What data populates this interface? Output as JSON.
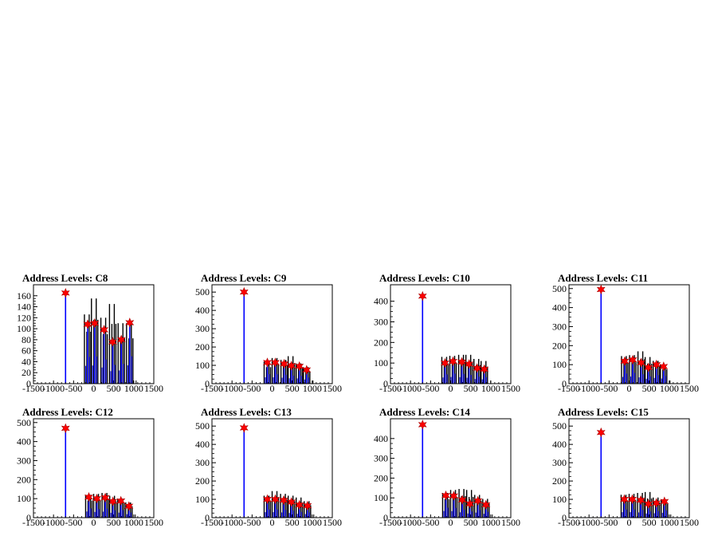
{
  "chart_data": [
    {
      "type": "histogram",
      "title": "Address Levels: C8",
      "xlim": [
        -1500,
        1500
      ],
      "ylim": [
        0,
        180
      ],
      "x_ticks": [
        -1500,
        -1000,
        -500,
        0,
        500,
        1000,
        1500
      ],
      "y_ticks": [
        0,
        20,
        40,
        60,
        80,
        100,
        120,
        140,
        160
      ],
      "peaks": [
        {
          "x": -700,
          "y": 165
        },
        {
          "x": -150,
          "y": 108
        },
        {
          "x": 25,
          "y": 110
        },
        {
          "x": 260,
          "y": 98
        },
        {
          "x": 475,
          "y": 76
        },
        {
          "x": 690,
          "y": 80
        },
        {
          "x": 900,
          "y": 111
        }
      ],
      "black_peaks": [
        {
          "x": -150,
          "y": 126
        },
        {
          "x": 25,
          "y": 155
        },
        {
          "x": 260,
          "y": 120
        },
        {
          "x": 475,
          "y": 145
        },
        {
          "x": 690,
          "y": 110
        },
        {
          "x": 900,
          "y": 110
        }
      ]
    },
    {
      "type": "histogram",
      "title": "Address Levels: C9",
      "xlim": [
        -1500,
        1500
      ],
      "ylim": [
        0,
        540
      ],
      "x_ticks": [
        -1500,
        -1000,
        -500,
        0,
        500,
        1000,
        1500
      ],
      "y_ticks": [
        0,
        100,
        200,
        300,
        400,
        500
      ],
      "peaks": [
        {
          "x": -700,
          "y": 500
        },
        {
          "x": -120,
          "y": 115
        },
        {
          "x": 80,
          "y": 115
        },
        {
          "x": 300,
          "y": 108
        },
        {
          "x": 480,
          "y": 98
        },
        {
          "x": 680,
          "y": 95
        },
        {
          "x": 860,
          "y": 75
        }
      ],
      "black_peaks": [
        {
          "x": -120,
          "y": 120
        },
        {
          "x": 80,
          "y": 140
        },
        {
          "x": 300,
          "y": 130
        },
        {
          "x": 480,
          "y": 150
        },
        {
          "x": 680,
          "y": 110
        },
        {
          "x": 860,
          "y": 90
        }
      ]
    },
    {
      "type": "histogram",
      "title": "Address Levels: C10",
      "xlim": [
        -1500,
        1500
      ],
      "ylim": [
        0,
        480
      ],
      "x_ticks": [
        -1500,
        -1000,
        -500,
        0,
        500,
        1000,
        1500
      ],
      "y_ticks": [
        0,
        100,
        200,
        300,
        400
      ],
      "peaks": [
        {
          "x": -700,
          "y": 425
        },
        {
          "x": -140,
          "y": 100
        },
        {
          "x": 60,
          "y": 108
        },
        {
          "x": 280,
          "y": 105
        },
        {
          "x": 460,
          "y": 95
        },
        {
          "x": 660,
          "y": 75
        },
        {
          "x": 840,
          "y": 70
        }
      ],
      "black_peaks": [
        {
          "x": -140,
          "y": 130
        },
        {
          "x": 60,
          "y": 135
        },
        {
          "x": 280,
          "y": 140
        },
        {
          "x": 460,
          "y": 140
        },
        {
          "x": 660,
          "y": 120
        },
        {
          "x": 840,
          "y": 110
        }
      ]
    },
    {
      "type": "histogram",
      "title": "Address Levels: C11",
      "xlim": [
        -1500,
        1500
      ],
      "ylim": [
        0,
        520
      ],
      "x_ticks": [
        -1500,
        -1000,
        -500,
        0,
        500,
        1000,
        1500
      ],
      "y_ticks": [
        0,
        100,
        200,
        300,
        400,
        500
      ],
      "peaks": [
        {
          "x": -700,
          "y": 495
        },
        {
          "x": -110,
          "y": 118
        },
        {
          "x": 90,
          "y": 125
        },
        {
          "x": 300,
          "y": 110
        },
        {
          "x": 480,
          "y": 85
        },
        {
          "x": 680,
          "y": 100
        },
        {
          "x": 860,
          "y": 90
        }
      ],
      "black_peaks": [
        {
          "x": -110,
          "y": 145
        },
        {
          "x": 90,
          "y": 150
        },
        {
          "x": 300,
          "y": 170
        },
        {
          "x": 480,
          "y": 140
        },
        {
          "x": 680,
          "y": 120
        },
        {
          "x": 860,
          "y": 100
        }
      ]
    },
    {
      "type": "histogram",
      "title": "Address Levels: C12",
      "xlim": [
        -1500,
        1500
      ],
      "ylim": [
        0,
        520
      ],
      "x_ticks": [
        -1500,
        -1000,
        -500,
        0,
        500,
        1000,
        1500
      ],
      "y_ticks": [
        0,
        100,
        200,
        300,
        400,
        500
      ],
      "peaks": [
        {
          "x": -700,
          "y": 470
        },
        {
          "x": -120,
          "y": 108
        },
        {
          "x": 80,
          "y": 100
        },
        {
          "x": 290,
          "y": 105
        },
        {
          "x": 480,
          "y": 85
        },
        {
          "x": 680,
          "y": 88
        },
        {
          "x": 880,
          "y": 60
        }
      ],
      "black_peaks": [
        {
          "x": -120,
          "y": 120
        },
        {
          "x": 80,
          "y": 125
        },
        {
          "x": 290,
          "y": 130
        },
        {
          "x": 480,
          "y": 115
        },
        {
          "x": 680,
          "y": 100
        },
        {
          "x": 880,
          "y": 80
        }
      ]
    },
    {
      "type": "histogram",
      "title": "Address Levels: C13",
      "xlim": [
        -1500,
        1500
      ],
      "ylim": [
        0,
        540
      ],
      "x_ticks": [
        -1500,
        -1000,
        -500,
        0,
        500,
        1000,
        1500
      ],
      "y_ticks": [
        0,
        100,
        200,
        300,
        400,
        500
      ],
      "peaks": [
        {
          "x": -700,
          "y": 490
        },
        {
          "x": -120,
          "y": 100
        },
        {
          "x": 80,
          "y": 100
        },
        {
          "x": 290,
          "y": 95
        },
        {
          "x": 480,
          "y": 85
        },
        {
          "x": 680,
          "y": 70
        },
        {
          "x": 880,
          "y": 65
        }
      ],
      "black_peaks": [
        {
          "x": -120,
          "y": 120
        },
        {
          "x": 80,
          "y": 145
        },
        {
          "x": 290,
          "y": 130
        },
        {
          "x": 480,
          "y": 120
        },
        {
          "x": 680,
          "y": 110
        },
        {
          "x": 880,
          "y": 90
        }
      ]
    },
    {
      "type": "histogram",
      "title": "Address Levels: C14",
      "xlim": [
        -1500,
        1500
      ],
      "ylim": [
        0,
        500
      ],
      "x_ticks": [
        -1500,
        -1000,
        -500,
        0,
        500,
        1000,
        1500
      ],
      "y_ticks": [
        0,
        100,
        200,
        300,
        400
      ],
      "peaks": [
        {
          "x": -700,
          "y": 470
        },
        {
          "x": -120,
          "y": 112
        },
        {
          "x": 80,
          "y": 110
        },
        {
          "x": 290,
          "y": 90
        },
        {
          "x": 480,
          "y": 70
        },
        {
          "x": 680,
          "y": 85
        },
        {
          "x": 880,
          "y": 65
        }
      ],
      "black_peaks": [
        {
          "x": -120,
          "y": 125
        },
        {
          "x": 80,
          "y": 140
        },
        {
          "x": 290,
          "y": 145
        },
        {
          "x": 480,
          "y": 140
        },
        {
          "x": 680,
          "y": 115
        },
        {
          "x": 880,
          "y": 95
        }
      ]
    },
    {
      "type": "histogram",
      "title": "Address Levels: C15",
      "xlim": [
        -1500,
        1500
      ],
      "ylim": [
        0,
        540
      ],
      "x_ticks": [
        -1500,
        -1000,
        -500,
        0,
        500,
        1000,
        1500
      ],
      "y_ticks": [
        0,
        100,
        200,
        300,
        400,
        500
      ],
      "peaks": [
        {
          "x": -700,
          "y": 465
        },
        {
          "x": -120,
          "y": 100
        },
        {
          "x": 80,
          "y": 100
        },
        {
          "x": 290,
          "y": 95
        },
        {
          "x": 480,
          "y": 75
        },
        {
          "x": 680,
          "y": 80
        },
        {
          "x": 880,
          "y": 88
        }
      ],
      "black_peaks": [
        {
          "x": -120,
          "y": 125
        },
        {
          "x": 80,
          "y": 130
        },
        {
          "x": 290,
          "y": 135
        },
        {
          "x": 480,
          "y": 140
        },
        {
          "x": 680,
          "y": 110
        },
        {
          "x": 880,
          "y": 100
        }
      ]
    }
  ],
  "colors": {
    "histogram_line": "#0000ff",
    "overlay_line": "#000000",
    "marker": "#ff0000",
    "frame": "#000000"
  }
}
